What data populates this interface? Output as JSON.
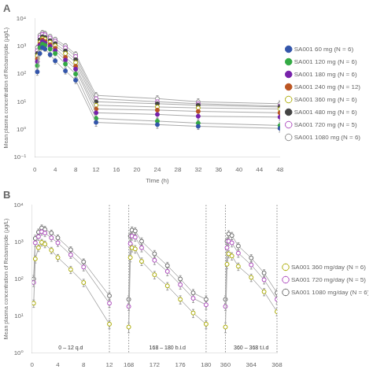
{
  "chart_data": [
    {
      "type": "line",
      "title": "A",
      "xlabel": "Time (h)",
      "ylabel": "Mean plasma concentration of Rebamipide (μg/L)",
      "log": "y",
      "grid": false,
      "legend": "right",
      "xlim": [
        0,
        48
      ],
      "xticks": [
        0,
        4,
        8,
        12,
        16,
        20,
        24,
        28,
        32,
        36,
        40,
        44,
        48
      ],
      "ylim": [
        0.1,
        10000
      ],
      "yticks": [
        {
          "value": 0.1,
          "label": "10⁻¹"
        },
        {
          "value": 1,
          "label": "10⁰"
        },
        {
          "value": 10,
          "label": "10¹"
        },
        {
          "value": 100,
          "label": "10²"
        },
        {
          "value": 1000,
          "label": "10³"
        },
        {
          "value": 10000,
          "label": "10⁴"
        }
      ],
      "x": [
        0.5,
        1,
        1.5,
        2,
        3,
        4,
        6,
        8,
        12,
        24,
        32,
        48
      ],
      "series": [
        {
          "name": "SA001 60 mg (N = 6)",
          "color": "#3355AA",
          "marker": "circle",
          "values": [
            120,
            550,
            900,
            800,
            500,
            300,
            130,
            60,
            1.8,
            1.5,
            1.3,
            1.1
          ],
          "errors": [
            30,
            100,
            150,
            140,
            90,
            70,
            30,
            15,
            0.5,
            0.4,
            0.3,
            0.3
          ]
        },
        {
          "name": "SA001 120 mg (N = 6)",
          "color": "#33AA44",
          "marker": "circle",
          "values": [
            200,
            900,
            1200,
            1100,
            800,
            550,
            230,
            100,
            2.5,
            2.0,
            1.7,
            1.4
          ],
          "errors": [
            50,
            150,
            200,
            180,
            130,
            100,
            50,
            25,
            0.6,
            0.5,
            0.4,
            0.4
          ]
        },
        {
          "name": "SA001 180 mg (N = 6)",
          "color": "#7722AA",
          "marker": "circle",
          "values": [
            280,
            1100,
            1500,
            1300,
            1000,
            700,
            320,
            150,
            4.0,
            3.5,
            3.0,
            2.8
          ],
          "errors": [
            70,
            200,
            280,
            240,
            180,
            130,
            70,
            35,
            1.0,
            0.9,
            0.8,
            0.7
          ]
        },
        {
          "name": "SA001 240 mg (N = 12)",
          "color": "#BB5522",
          "marker": "circle",
          "values": [
            350,
            1200,
            1700,
            1500,
            1150,
            850,
            400,
            190,
            5.5,
            5.0,
            4.5,
            4.0
          ],
          "errors": [
            80,
            220,
            310,
            270,
            200,
            150,
            80,
            45,
            1.3,
            1.2,
            1.1,
            1.0
          ]
        },
        {
          "name": "SA001 360 mg (N = 6)",
          "color": "#AAAA00",
          "marker": "open_circle",
          "values": [
            450,
            1400,
            1900,
            1800,
            1400,
            1050,
            550,
            260,
            7.5,
            6.5,
            6.0,
            5.5
          ],
          "errors": [
            100,
            250,
            350,
            320,
            240,
            190,
            110,
            60,
            2.0,
            1.8,
            1.6,
            1.5
          ]
        },
        {
          "name": "SA001 480 mg (N = 6)",
          "color": "#444444",
          "marker": "circle",
          "values": [
            550,
            1700,
            2200,
            2100,
            1600,
            1250,
            680,
            330,
            10.0,
            8.5,
            7.5,
            6.5
          ],
          "errors": [
            120,
            300,
            400,
            380,
            280,
            220,
            140,
            75,
            2.5,
            2.2,
            2.0,
            1.8
          ]
        },
        {
          "name": "SA001 720 mg (N = 5)",
          "color": "#AA44BB",
          "marker": "open_circle",
          "values": [
            700,
            2100,
            2700,
            2600,
            2000,
            1550,
            880,
            430,
            13.0,
            10.0,
            8.5,
            7.0
          ],
          "errors": [
            160,
            380,
            500,
            470,
            340,
            280,
            170,
            95,
            3.5,
            2.8,
            2.4,
            2.0
          ]
        },
        {
          "name": "SA001 1080 mg (N = 6)",
          "color": "#888888",
          "marker": "open_circle",
          "values": [
            900,
            2500,
            3100,
            2900,
            2300,
            1800,
            1050,
            520,
            17.0,
            13.0,
            10.0,
            8.5
          ],
          "errors": [
            200,
            450,
            600,
            550,
            400,
            320,
            200,
            115,
            4.5,
            3.5,
            2.8,
            2.4
          ]
        }
      ]
    },
    {
      "type": "line",
      "title": "B",
      "ylabel": "Mean plasma concentration of Rebamipide (μg/L)",
      "log": "y",
      "grid": false,
      "legend": "right",
      "xlim": [
        [
          0,
          12
        ],
        [
          168,
          180
        ],
        [
          360,
          368
        ]
      ],
      "xticks": [
        0,
        4,
        8,
        12,
        168,
        172,
        176,
        180,
        360,
        364,
        368
      ],
      "ylim": [
        1,
        10000
      ],
      "yticks": [
        {
          "value": 1,
          "label": "10⁰"
        },
        {
          "value": 10,
          "label": "10¹"
        },
        {
          "value": 100,
          "label": "10²"
        },
        {
          "value": 1000,
          "label": "10³"
        },
        {
          "value": 10000,
          "label": "10⁴"
        }
      ],
      "vlines": [
        12,
        168,
        180,
        360,
        368
      ],
      "annotations": [
        "0 – 12 q.d",
        "168 – 180 b.i.d",
        "360 – 368 t.i.d"
      ],
      "x": [
        0.25,
        0.5,
        1,
        1.5,
        2,
        3,
        4,
        6,
        8,
        12,
        168,
        168.25,
        168.5,
        169,
        170,
        172,
        174,
        176,
        178,
        180,
        360,
        360.25,
        360.5,
        361,
        362,
        364,
        366,
        368
      ],
      "series": [
        {
          "name": "SA001 360 mg/day (N = 6)",
          "color": "#AAAA00",
          "marker": "open_circle",
          "values": [
            22,
            350,
            700,
            980,
            880,
            600,
            380,
            180,
            80,
            6,
            5,
            380,
            700,
            650,
            300,
            130,
            65,
            28,
            12,
            6,
            5,
            250,
            480,
            420,
            220,
            110,
            45,
            13
          ],
          "errors": [
            5,
            80,
            150,
            200,
            180,
            120,
            80,
            40,
            18,
            1.5,
            1.5,
            90,
            160,
            150,
            70,
            30,
            15,
            7,
            3,
            1.5,
            1.5,
            60,
            110,
            95,
            50,
            25,
            10,
            3
          ]
        },
        {
          "name": "SA001 720 mg/day (N = 5)",
          "color": "#AA44BB",
          "marker": "open_circle",
          "values": [
            80,
            950,
            1400,
            1900,
            1750,
            1300,
            950,
            450,
            210,
            22,
            18,
            900,
            1450,
            1350,
            700,
            320,
            160,
            70,
            30,
            20,
            18,
            700,
            1050,
            950,
            500,
            240,
            95,
            28
          ],
          "errors": [
            18,
            200,
            300,
            380,
            350,
            260,
            190,
            90,
            45,
            5,
            4,
            200,
            320,
            300,
            160,
            75,
            38,
            17,
            7,
            5,
            4,
            160,
            240,
            215,
            115,
            55,
            22,
            7
          ]
        },
        {
          "name": "SA001 1080 mg/day (N = 6)",
          "color": "#666666",
          "marker": "open_circle",
          "values": [
            100,
            1250,
            1850,
            2400,
            2200,
            1750,
            1300,
            620,
            290,
            35,
            28,
            1450,
            2100,
            2000,
            1050,
            480,
            230,
            100,
            42,
            28,
            28,
            1050,
            1650,
            1500,
            780,
            370,
            145,
            42
          ],
          "errors": [
            25,
            280,
            400,
            500,
            450,
            350,
            260,
            125,
            60,
            8,
            7,
            320,
            460,
            440,
            240,
            110,
            52,
            23,
            10,
            7,
            7,
            240,
            370,
            335,
            175,
            85,
            33,
            10
          ]
        }
      ]
    }
  ]
}
